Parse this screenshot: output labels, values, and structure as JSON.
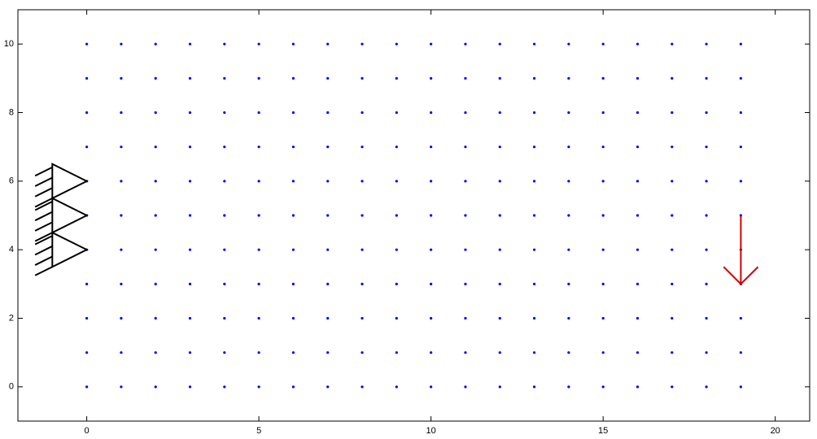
{
  "chart_data": {
    "type": "scatter",
    "x": [
      0,
      1,
      2,
      3,
      4,
      5,
      6,
      7,
      8,
      9,
      10,
      11,
      12,
      13,
      14,
      15,
      16,
      17,
      18,
      19,
      0,
      1,
      2,
      3,
      4,
      5,
      6,
      7,
      8,
      9,
      10,
      11,
      12,
      13,
      14,
      15,
      16,
      17,
      18,
      19,
      0,
      1,
      2,
      3,
      4,
      5,
      6,
      7,
      8,
      9,
      10,
      11,
      12,
      13,
      14,
      15,
      16,
      17,
      18,
      19,
      0,
      1,
      2,
      3,
      4,
      5,
      6,
      7,
      8,
      9,
      10,
      11,
      12,
      13,
      14,
      15,
      16,
      17,
      18,
      19,
      0,
      1,
      2,
      3,
      4,
      5,
      6,
      7,
      8,
      9,
      10,
      11,
      12,
      13,
      14,
      15,
      16,
      17,
      18,
      19,
      0,
      1,
      2,
      3,
      4,
      5,
      6,
      7,
      8,
      9,
      10,
      11,
      12,
      13,
      14,
      15,
      16,
      17,
      18,
      19,
      0,
      1,
      2,
      3,
      4,
      5,
      6,
      7,
      8,
      9,
      10,
      11,
      12,
      13,
      14,
      15,
      16,
      17,
      18,
      19,
      0,
      1,
      2,
      3,
      4,
      5,
      6,
      7,
      8,
      9,
      10,
      11,
      12,
      13,
      14,
      15,
      16,
      17,
      18,
      19,
      0,
      1,
      2,
      3,
      4,
      5,
      6,
      7,
      8,
      9,
      10,
      11,
      12,
      13,
      14,
      15,
      16,
      17,
      18,
      19,
      0,
      1,
      2,
      3,
      4,
      5,
      6,
      7,
      8,
      9,
      10,
      11,
      12,
      13,
      14,
      15,
      16,
      17,
      18,
      19,
      0,
      1,
      2,
      3,
      4,
      5,
      6,
      7,
      8,
      9,
      10,
      11,
      12,
      13,
      14,
      15,
      16,
      17,
      18,
      19
    ],
    "values": [
      0,
      0,
      0,
      0,
      0,
      0,
      0,
      0,
      0,
      0,
      0,
      0,
      0,
      0,
      0,
      0,
      0,
      0,
      0,
      0,
      1,
      1,
      1,
      1,
      1,
      1,
      1,
      1,
      1,
      1,
      1,
      1,
      1,
      1,
      1,
      1,
      1,
      1,
      1,
      1,
      2,
      2,
      2,
      2,
      2,
      2,
      2,
      2,
      2,
      2,
      2,
      2,
      2,
      2,
      2,
      2,
      2,
      2,
      2,
      2,
      3,
      3,
      3,
      3,
      3,
      3,
      3,
      3,
      3,
      3,
      3,
      3,
      3,
      3,
      3,
      3,
      3,
      3,
      3,
      3,
      4,
      4,
      4,
      4,
      4,
      4,
      4,
      4,
      4,
      4,
      4,
      4,
      4,
      4,
      4,
      4,
      4,
      4,
      4,
      4,
      5,
      5,
      5,
      5,
      5,
      5,
      5,
      5,
      5,
      5,
      5,
      5,
      5,
      5,
      5,
      5,
      5,
      5,
      5,
      5,
      6,
      6,
      6,
      6,
      6,
      6,
      6,
      6,
      6,
      6,
      6,
      6,
      6,
      6,
      6,
      6,
      6,
      6,
      6,
      6,
      7,
      7,
      7,
      7,
      7,
      7,
      7,
      7,
      7,
      7,
      7,
      7,
      7,
      7,
      7,
      7,
      7,
      7,
      7,
      7,
      8,
      8,
      8,
      8,
      8,
      8,
      8,
      8,
      8,
      8,
      8,
      8,
      8,
      8,
      8,
      8,
      8,
      8,
      8,
      8,
      9,
      9,
      9,
      9,
      9,
      9,
      9,
      9,
      9,
      9,
      9,
      9,
      9,
      9,
      9,
      9,
      9,
      9,
      9,
      9,
      10,
      10,
      10,
      10,
      10,
      10,
      10,
      10,
      10,
      10,
      10,
      10,
      10,
      10,
      10,
      10,
      10,
      10,
      10,
      10
    ],
    "color": "#0000ff",
    "supports": [
      {
        "x": 0,
        "y": 6
      },
      {
        "x": 0,
        "y": 5
      },
      {
        "x": 0,
        "y": 4
      }
    ],
    "load": {
      "x": 19,
      "y_from": 5,
      "y_to": 3,
      "color": "#d40000"
    },
    "xlim": [
      -2,
      21
    ],
    "ylim": [
      -1,
      11
    ],
    "xticks": [
      0,
      5,
      10,
      15,
      20
    ],
    "yticks": [
      0,
      2,
      4,
      6,
      8,
      10
    ],
    "grid": false
  }
}
